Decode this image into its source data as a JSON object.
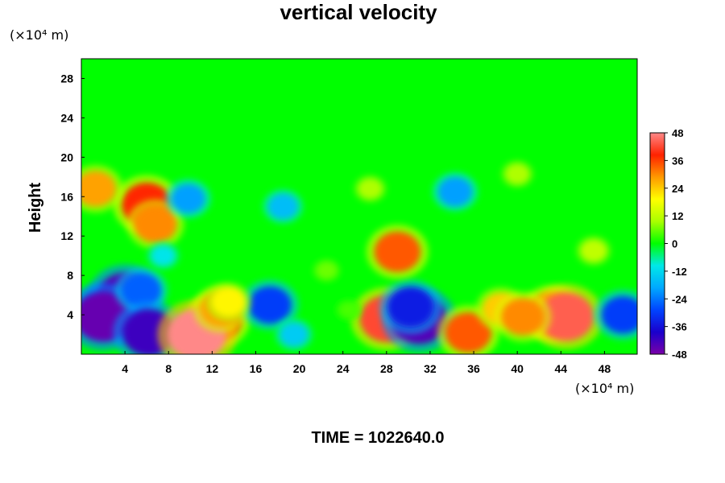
{
  "chart_data": {
    "type": "heatmap",
    "title": "vertical velocity",
    "xlabel": "",
    "ylabel": "Height",
    "x_unit": "(×10⁴ m)",
    "y_unit": "(×10⁴ m)",
    "xlim": [
      0,
      51
    ],
    "ylim": [
      0,
      30
    ],
    "x_ticks": [
      4,
      8,
      12,
      16,
      20,
      24,
      28,
      32,
      36,
      40,
      44,
      48
    ],
    "x_tick_labels": [
      "4",
      "8",
      "12",
      "16",
      "20",
      "24",
      "28",
      "32",
      "36",
      "40",
      "44",
      "48"
    ],
    "y_ticks": [
      4,
      8,
      12,
      16,
      20,
      24,
      28
    ],
    "y_tick_labels": [
      "4",
      "8",
      "12",
      "16",
      "20",
      "24",
      "28"
    ],
    "background_value": 0,
    "colorbar": {
      "min": -48,
      "max": 48,
      "ticks": [
        48,
        36,
        24,
        12,
        0,
        -12,
        -24,
        -36,
        -48
      ],
      "tick_labels": [
        "48",
        "36",
        "24",
        "12",
        "0",
        "-12",
        "-24",
        "-36",
        "-48"
      ],
      "colors": [
        "#7a00a8",
        "#1a00cc",
        "#0044ff",
        "#00a8ff",
        "#00e8e8",
        "#00ff00",
        "#aaff00",
        "#ffff00",
        "#ff9900",
        "#ff2200",
        "#ff8888"
      ]
    },
    "features": [
      {
        "x": 2.2,
        "y": 4.2,
        "value": -38
      },
      {
        "x": 4.0,
        "y": 5.8,
        "value": -44
      },
      {
        "x": 2.0,
        "y": 3.8,
        "value": -46
      },
      {
        "x": 5.5,
        "y": 6.5,
        "value": -26
      },
      {
        "x": 6.2,
        "y": 2.2,
        "value": -42
      },
      {
        "x": 12.5,
        "y": 3.5,
        "value": 36
      },
      {
        "x": 10.6,
        "y": 2.0,
        "value": 48
      },
      {
        "x": 12.8,
        "y": 4.6,
        "value": 28
      },
      {
        "x": 17.3,
        "y": 5.0,
        "value": -30
      },
      {
        "x": 13.5,
        "y": 5.3,
        "value": 20
      },
      {
        "x": 28.0,
        "y": 3.6,
        "value": 42
      },
      {
        "x": 31.0,
        "y": 3.5,
        "value": -44
      },
      {
        "x": 30.2,
        "y": 4.8,
        "value": -34
      },
      {
        "x": 35.5,
        "y": 2.2,
        "value": 34
      },
      {
        "x": 38.5,
        "y": 4.6,
        "value": 24
      },
      {
        "x": 43.2,
        "y": 4.1,
        "value": 36
      },
      {
        "x": 44.5,
        "y": 3.8,
        "value": 44
      },
      {
        "x": 40.5,
        "y": 3.8,
        "value": 30
      },
      {
        "x": 49.7,
        "y": 4.0,
        "value": -30
      },
      {
        "x": 6.0,
        "y": 15.2,
        "value": 38
      },
      {
        "x": 6.8,
        "y": 13.2,
        "value": 30
      },
      {
        "x": 1.3,
        "y": 16.8,
        "value": 28
      },
      {
        "x": 9.8,
        "y": 15.8,
        "value": -20
      },
      {
        "x": 29.0,
        "y": 10.4,
        "value": 34
      },
      {
        "x": 34.3,
        "y": 16.5,
        "value": -20
      },
      {
        "x": 18.5,
        "y": 15.0,
        "value": -16
      },
      {
        "x": 7.5,
        "y": 10.0,
        "value": -10
      },
      {
        "x": 40.0,
        "y": 18.3,
        "value": 10
      },
      {
        "x": 26.5,
        "y": 16.8,
        "value": 10
      },
      {
        "x": 47.0,
        "y": 10.5,
        "value": 12
      },
      {
        "x": 22.5,
        "y": 8.5,
        "value": 6
      },
      {
        "x": 24.5,
        "y": 4.5,
        "value": 4
      },
      {
        "x": 19.5,
        "y": 2.0,
        "value": -14
      }
    ]
  },
  "footer": {
    "time_text": "TIME = 1022640.0"
  }
}
